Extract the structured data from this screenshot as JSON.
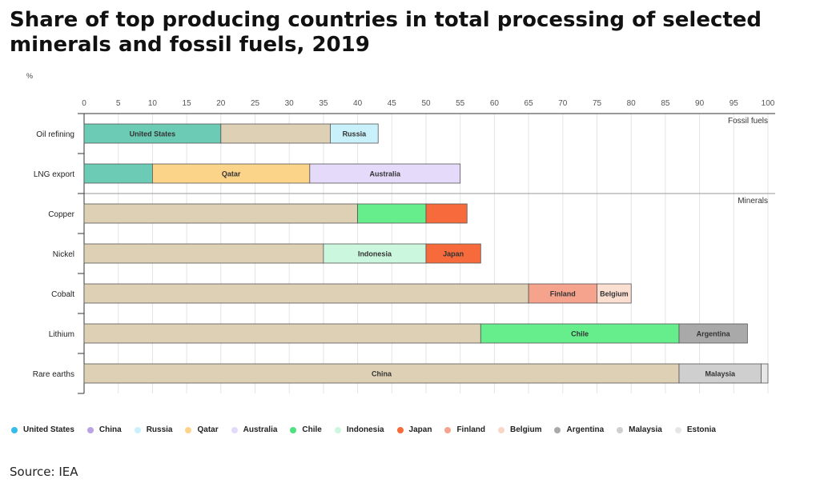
{
  "title": "Share of top producing countries in total processing of selected minerals and fossil fuels, 2019",
  "unit_label": "%",
  "source": "Source: IEA",
  "legend": [
    {
      "label": "United States",
      "color": "#34bde8"
    },
    {
      "label": "China",
      "color": "#b9a3e6"
    },
    {
      "label": "Russia",
      "color": "#c9f1fb"
    },
    {
      "label": "Qatar",
      "color": "#fbd48a"
    },
    {
      "label": "Australia",
      "color": "#e2d9fb"
    },
    {
      "label": "Chile",
      "color": "#4fe07f"
    },
    {
      "label": "Indonesia",
      "color": "#cbf7de"
    },
    {
      "label": "Japan",
      "color": "#f66a3b"
    },
    {
      "label": "Finland",
      "color": "#f6a38e"
    },
    {
      "label": "Belgium",
      "color": "#f8d7c6"
    },
    {
      "label": "Argentina",
      "color": "#a9a9a9"
    },
    {
      "label": "Malaysia",
      "color": "#cfcfcf"
    },
    {
      "label": "Estonia",
      "color": "#e6e6e6"
    }
  ],
  "chart_data": {
    "type": "bar",
    "orientation": "horizontal",
    "stacked": true,
    "xlim": [
      0,
      100
    ],
    "xticks": [
      0,
      5,
      10,
      15,
      20,
      25,
      30,
      35,
      40,
      45,
      50,
      55,
      60,
      65,
      70,
      75,
      80,
      85,
      90,
      95,
      100
    ],
    "grid": true,
    "group_labels": [
      "Fossil fuels",
      "Minerals"
    ],
    "categories": [
      "Oil refining",
      "LNG export",
      "Copper",
      "Nickel",
      "Cobalt",
      "Lithium",
      "Rare earths"
    ],
    "bars": [
      {
        "category": "Oil refining",
        "segments": [
          {
            "country": "United States",
            "value": 20,
            "color": "#6ccbb4",
            "label": "United States"
          },
          {
            "country": "China",
            "value": 16,
            "color": "#ded0b5",
            "label": ""
          },
          {
            "country": "Russia",
            "value": 7,
            "color": "#c9f1fb",
            "label": "Russia"
          }
        ]
      },
      {
        "category": "LNG export",
        "segments": [
          {
            "country": "United States",
            "value": 10,
            "color": "#6ccbb4",
            "label": ""
          },
          {
            "country": "Qatar",
            "value": 23,
            "color": "#fbd48a",
            "label": "Qatar"
          },
          {
            "country": "Australia",
            "value": 22,
            "color": "#e6dafb",
            "label": "Australia"
          }
        ]
      },
      {
        "category": "Copper",
        "segments": [
          {
            "country": "China",
            "value": 40,
            "color": "#ded0b5",
            "label": ""
          },
          {
            "country": "Chile",
            "value": 10,
            "color": "#66ee8c",
            "label": ""
          },
          {
            "country": "Japan",
            "value": 6,
            "color": "#f66a3b",
            "label": ""
          }
        ]
      },
      {
        "category": "Nickel",
        "segments": [
          {
            "country": "China",
            "value": 35,
            "color": "#ded0b5",
            "label": ""
          },
          {
            "country": "Indonesia",
            "value": 15,
            "color": "#cbf7de",
            "label": "Indonesia"
          },
          {
            "country": "Japan",
            "value": 8,
            "color": "#f66a3b",
            "label": "Japan"
          }
        ]
      },
      {
        "category": "Cobalt",
        "segments": [
          {
            "country": "China",
            "value": 65,
            "color": "#ded0b5",
            "label": ""
          },
          {
            "country": "Finland",
            "value": 10,
            "color": "#f6a38e",
            "label": "Finland"
          },
          {
            "country": "Belgium",
            "value": 5,
            "color": "#fbe0d2",
            "label": "Belgium"
          }
        ]
      },
      {
        "category": "Lithium",
        "segments": [
          {
            "country": "China",
            "value": 58,
            "color": "#ded0b5",
            "label": ""
          },
          {
            "country": "Chile",
            "value": 29,
            "color": "#66ee8c",
            "label": "Chile"
          },
          {
            "country": "Argentina",
            "value": 10,
            "color": "#a9a9a9",
            "label": "Argentina"
          }
        ]
      },
      {
        "category": "Rare earths",
        "segments": [
          {
            "country": "China",
            "value": 87,
            "color": "#ded0b5",
            "label": "China"
          },
          {
            "country": "Malaysia",
            "value": 12,
            "color": "#cfcfcf",
            "label": "Malaysia"
          },
          {
            "country": "Estonia",
            "value": 1,
            "color": "#e6e6e6",
            "label": ""
          }
        ]
      }
    ]
  }
}
